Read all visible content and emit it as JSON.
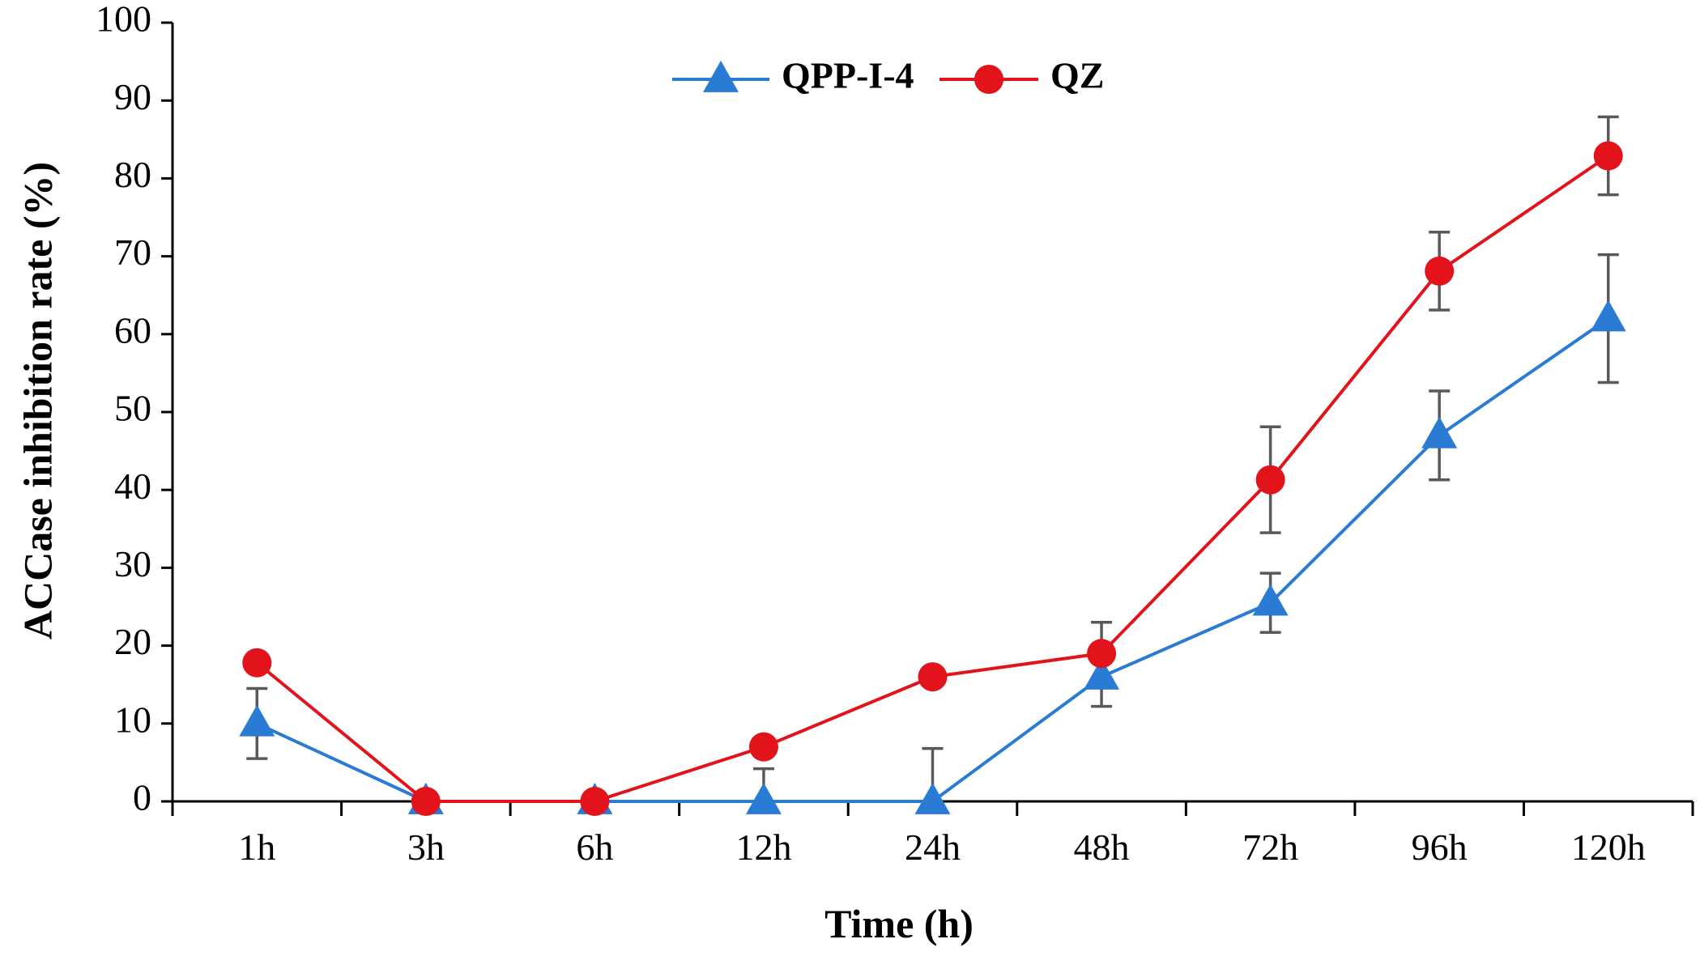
{
  "chart_data": {
    "type": "line",
    "title": "",
    "xlabel": "Time (h)",
    "ylabel": "ACCase inhibition rate (%)",
    "ylim": [
      0,
      100
    ],
    "yticks": [
      0,
      10,
      20,
      30,
      40,
      50,
      60,
      70,
      80,
      90,
      100
    ],
    "categories": [
      "1h",
      "3h",
      "6h",
      "12h",
      "24h",
      "48h",
      "72h",
      "96h",
      "120h"
    ],
    "grid": false,
    "legend_position": "top-center",
    "error_bars": true,
    "series": [
      {
        "name": "QPP-I-4",
        "marker": "triangle",
        "color": "#2a7bd4",
        "values": [
          10,
          0,
          0,
          0,
          0,
          16,
          25.5,
          47,
          62
        ],
        "errors": [
          4.5,
          0,
          0,
          4.2,
          6.8,
          3.8,
          3.8,
          5.7,
          8.2
        ]
      },
      {
        "name": "QZ",
        "marker": "circle",
        "color": "#e3131b",
        "values": [
          17.8,
          0,
          0,
          7,
          16,
          19,
          41.3,
          68.1,
          82.9
        ],
        "errors": [
          0,
          0,
          0,
          0,
          0,
          4,
          6.8,
          5,
          5
        ]
      }
    ],
    "error_bar_color": "#595959"
  }
}
